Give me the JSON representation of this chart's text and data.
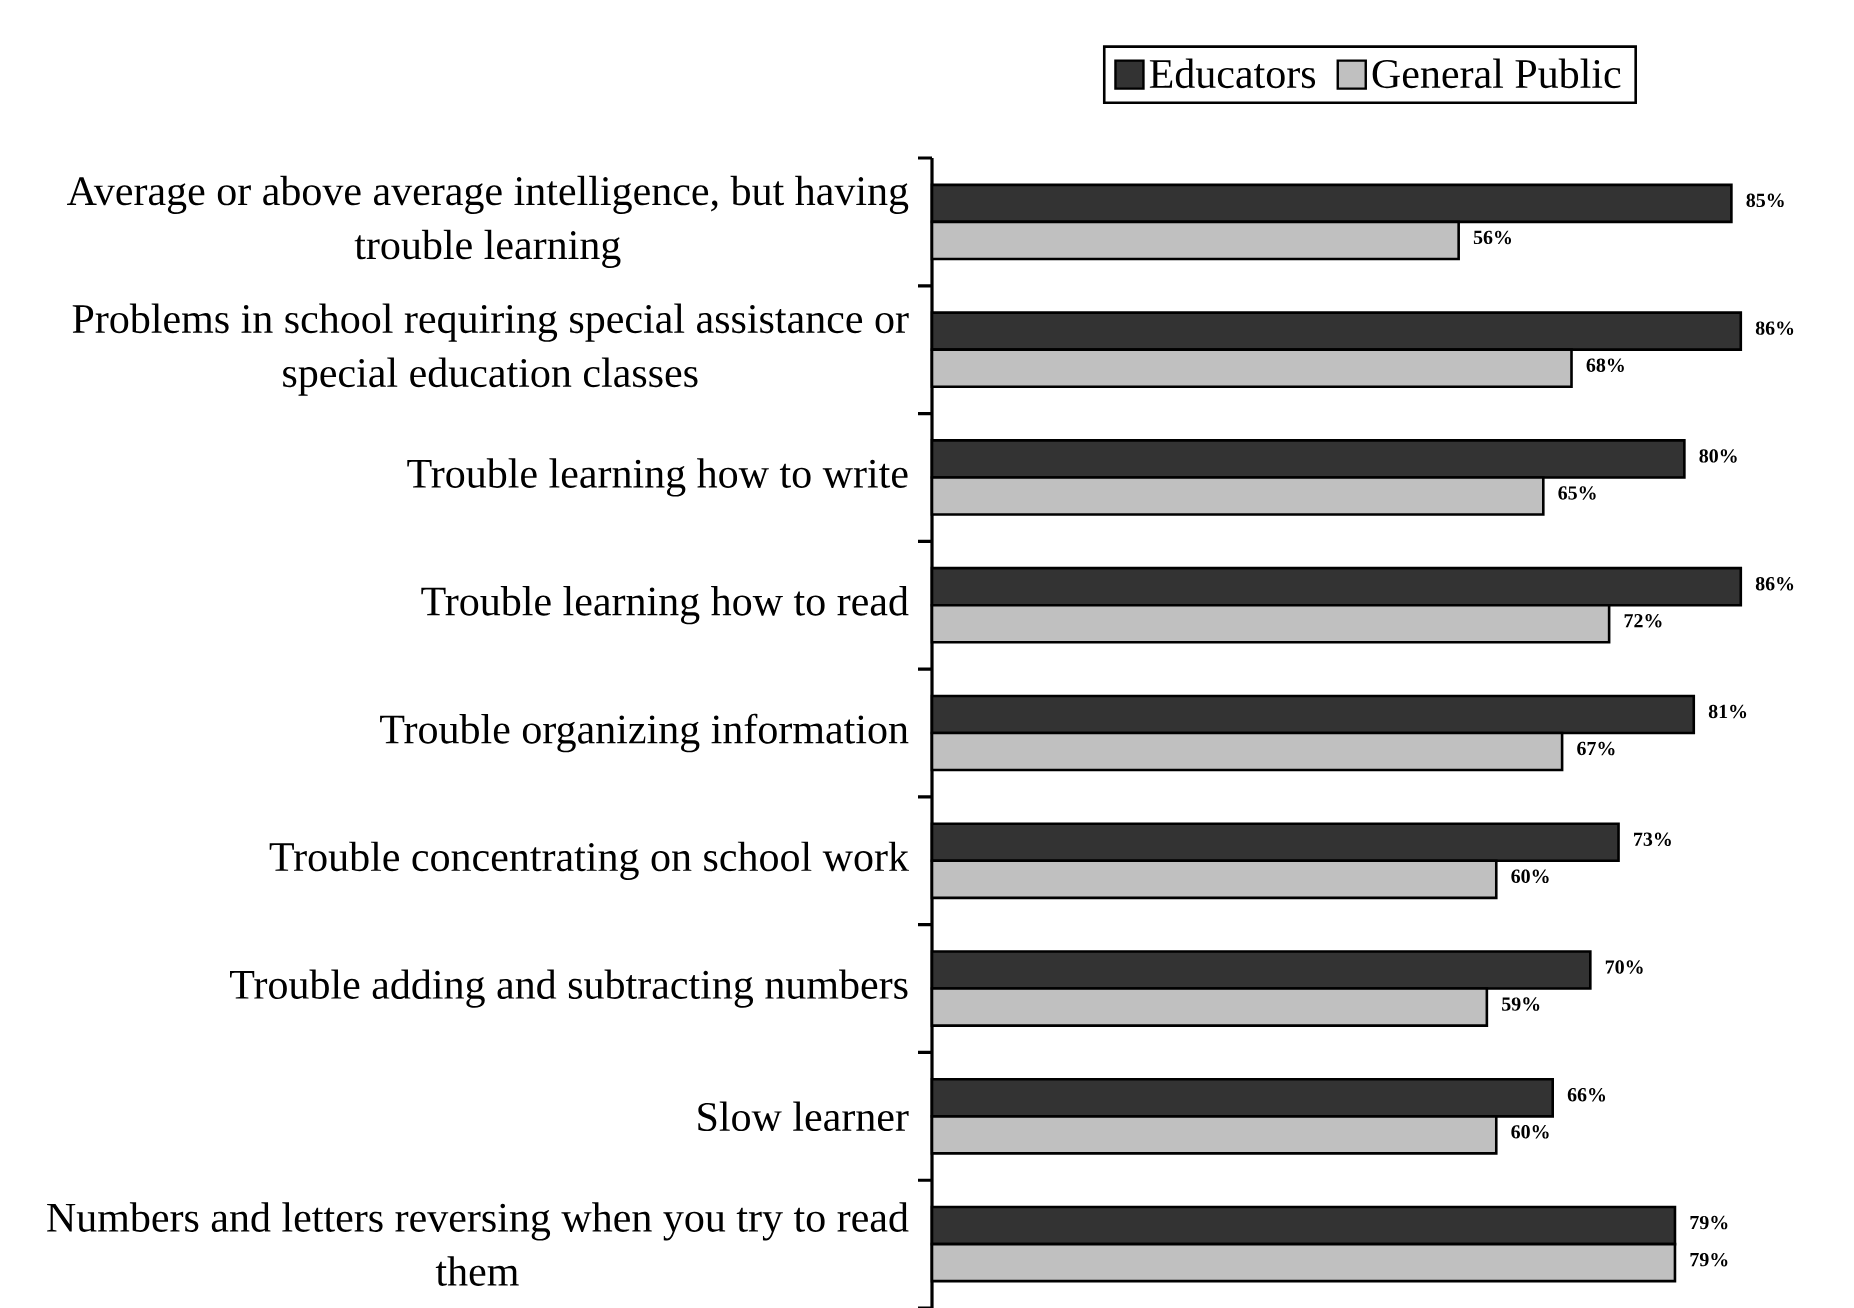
{
  "chart_data": {
    "type": "bar",
    "orientation": "horizontal",
    "categories": [
      "Average or above average intelligence, but having trouble learning",
      "Problems in school requiring special assistance or special education classes",
      "Trouble learning how to write",
      "Trouble learning how to read",
      "Trouble organizing information",
      "Trouble concentrating on school work",
      "Trouble adding and subtracting numbers",
      "Slow learner",
      "Numbers and letters reversing when you try to read them"
    ],
    "series": [
      {
        "name": "Educators",
        "color": "#333333",
        "values": [
          85,
          86,
          80,
          86,
          81,
          73,
          70,
          66,
          79
        ],
        "value_labels": [
          "85%",
          "86%",
          "80%",
          "86%",
          "81%",
          "73%",
          "70%",
          "66%",
          "79%"
        ]
      },
      {
        "name": "General Public",
        "color": "#c0c0c0",
        "values": [
          56,
          68,
          65,
          72,
          67,
          60,
          59,
          60,
          79
        ],
        "value_labels": [
          "56%",
          "68%",
          "65%",
          "72%",
          "67%",
          "60%",
          "59%",
          "60%",
          "79%"
        ]
      }
    ],
    "legend": "top",
    "tick_labels": "y"
  }
}
